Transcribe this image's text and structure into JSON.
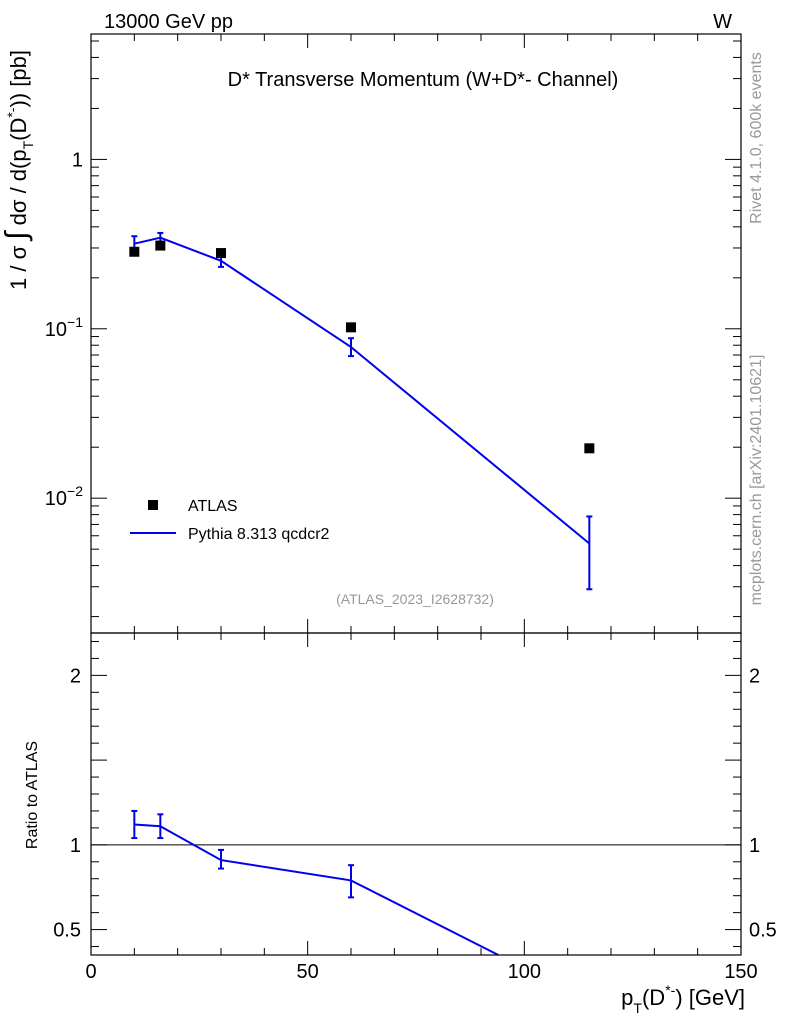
{
  "header": {
    "left": "13000 GeV pp",
    "right": "W"
  },
  "side": {
    "rivet": "Rivet 4.1.0,  600k events",
    "mcplots": "mcplots.cern.ch [arXiv:2401.10621]"
  },
  "colors": {
    "mc": "#0000ee",
    "data": "#000000",
    "watermark": "#999999"
  },
  "chart_data": [
    {
      "type": "scatter",
      "panel": "main",
      "title": "D* Transverse Momentum (W+D*- Channel)",
      "ylabel_parts": {
        "a": "1 / σ ",
        "integral": "∫",
        "b": " dσ / d(p",
        "sub": "T",
        "c": "(D",
        "sup": "*-",
        "d": ")) [pb]"
      },
      "yscale": "log",
      "ylim": [
        0.0016,
        5.5
      ],
      "xlim": [
        0,
        150
      ],
      "yticks": [
        {
          "value": 1,
          "base": "1",
          "exp": ""
        },
        {
          "value": 0.1,
          "base": "10",
          "exp": "−1"
        },
        {
          "value": 0.01,
          "base": "10",
          "exp": "−2"
        }
      ],
      "analysis_id": "(ATLAS_2023_I2628732)",
      "legend_position": "bottom-left",
      "series": [
        {
          "name": "ATLAS",
          "kind": "markers",
          "x": [
            10,
            16,
            30,
            60,
            115
          ],
          "y": [
            0.285,
            0.31,
            0.28,
            0.102,
            0.0197
          ]
        },
        {
          "name": "Pythia 8.313 qcdcr2",
          "kind": "line",
          "x": [
            10,
            16,
            30,
            60,
            115
          ],
          "y": [
            0.318,
            0.345,
            0.252,
            0.078,
            0.0054
          ],
          "err_lo": [
            0.29,
            0.325,
            0.232,
            0.069,
            0.0029
          ],
          "err_hi": [
            0.352,
            0.368,
            0.272,
            0.088,
            0.0078
          ]
        }
      ]
    },
    {
      "type": "line",
      "panel": "ratio",
      "ylabel": "Ratio to ATLAS",
      "xlabel_parts": {
        "a": "p",
        "sub": "T",
        "b": "(D",
        "sup": "*-",
        "c": ") [GeV]"
      },
      "ylim": [
        0.35,
        2.25
      ],
      "xlim": [
        0,
        150
      ],
      "yticks": [
        0.5,
        1,
        2
      ],
      "ytick_labels": [
        "0.5",
        "1",
        "2"
      ],
      "xticks": [
        0,
        50,
        100,
        150
      ],
      "xtick_labels": [
        "0",
        "50",
        "100",
        "150"
      ],
      "reference": 1,
      "series": [
        {
          "name": "Pythia 8.313 qcdcr2 / ATLAS",
          "x": [
            10,
            16,
            30,
            60,
            94
          ],
          "y": [
            1.12,
            1.11,
            0.91,
            0.79,
            0.35
          ],
          "err_lo": [
            1.04,
            1.04,
            0.86,
            0.69,
            null
          ],
          "err_hi": [
            1.2,
            1.18,
            0.97,
            0.88,
            null
          ]
        }
      ]
    }
  ]
}
